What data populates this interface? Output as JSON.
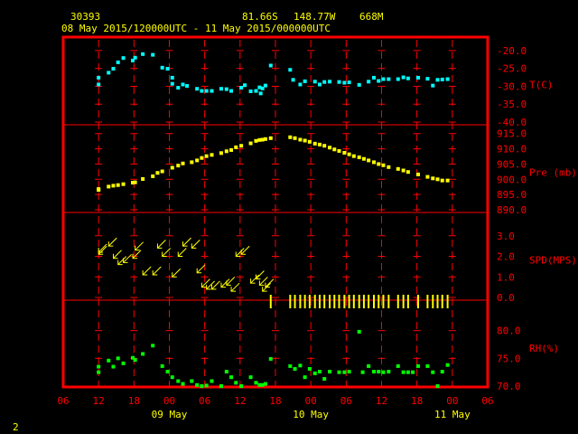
{
  "header": {
    "station_id": "30393",
    "latitude": "81.66S",
    "longitude": "148.77W",
    "elevation": "668M",
    "period": "08 May 2015/120000UTC - 11 May 2015/000000UTC"
  },
  "footer": {
    "page_number": "2"
  },
  "colors": {
    "background": "#000000",
    "frame": "#ff0000",
    "axis_text": "#ff0000",
    "header_text": "#ffff00",
    "day_text": "#ffff00",
    "temperature": "#00ffff",
    "pressure": "#ffff00",
    "wind": "#ffff00",
    "humidity": "#00ff00"
  },
  "chart_data": {
    "type": "scatter",
    "x_unit": "hours since 2015-05-08 12:00 UTC",
    "x_range": [
      -6,
      66
    ],
    "x_tick_labels": [
      "06",
      "12",
      "18",
      "00",
      "06",
      "12",
      "18",
      "00",
      "06",
      "12",
      "18",
      "00",
      "06"
    ],
    "x_tick_hours": [
      -6,
      0,
      6,
      12,
      18,
      24,
      30,
      36,
      42,
      48,
      54,
      60,
      66
    ],
    "day_labels": [
      {
        "label": "09 May",
        "hour": 12
      },
      {
        "label": "10 May",
        "hour": 36
      },
      {
        "label": "11 May",
        "hour": 60
      }
    ],
    "panels": [
      {
        "name": "temperature",
        "label": "T(C)",
        "ylim": [
          -40,
          -17
        ],
        "tick_values": [
          -20,
          -25,
          -30,
          -35,
          -40
        ],
        "tick_labels": [
          "-20.0",
          "-25.0",
          "-30.0",
          "-35.0",
          "-40.0"
        ],
        "marker": "square",
        "points": [
          [
            0,
            -29.5
          ],
          [
            0,
            -27.6
          ],
          [
            1.7,
            -26.2
          ],
          [
            2.5,
            -25.1
          ],
          [
            3.3,
            -23.3
          ],
          [
            4.2,
            -22.1
          ],
          [
            5.8,
            -22.8
          ],
          [
            6.2,
            -22.0
          ],
          [
            7.5,
            -21.0
          ],
          [
            9.2,
            -21.2
          ],
          [
            10.8,
            -24.8
          ],
          [
            11.7,
            -25.1
          ],
          [
            12.5,
            -27.6
          ],
          [
            12.5,
            -29.3
          ],
          [
            13.5,
            -30.4
          ],
          [
            14.3,
            -29.5
          ],
          [
            15.0,
            -29.9
          ],
          [
            16.7,
            -30.7
          ],
          [
            17.5,
            -31.3
          ],
          [
            18.3,
            -31.3
          ],
          [
            19.2,
            -31.3
          ],
          [
            20.8,
            -30.7
          ],
          [
            21.7,
            -30.8
          ],
          [
            22.5,
            -31.3
          ],
          [
            24.2,
            -30.4
          ],
          [
            24.8,
            -29.7
          ],
          [
            25.8,
            -31.4
          ],
          [
            26.7,
            -31.3
          ],
          [
            27.3,
            -30.3
          ],
          [
            27.8,
            -30.6
          ],
          [
            27.5,
            -32.0
          ],
          [
            28.3,
            -29.8
          ],
          [
            29.2,
            -24.2
          ],
          [
            32.5,
            -25.4
          ],
          [
            33.0,
            -28.2
          ],
          [
            34.2,
            -29.5
          ],
          [
            35.0,
            -28.6
          ],
          [
            36.7,
            -28.7
          ],
          [
            37.5,
            -29.5
          ],
          [
            38.3,
            -28.8
          ],
          [
            39.2,
            -28.7
          ],
          [
            40.8,
            -28.8
          ],
          [
            41.7,
            -29.0
          ],
          [
            42.5,
            -28.9
          ],
          [
            44.2,
            -29.6
          ],
          [
            45.8,
            -28.7
          ],
          [
            46.7,
            -27.6
          ],
          [
            47.5,
            -28.5
          ],
          [
            48.3,
            -28.0
          ],
          [
            49.2,
            -28.0
          ],
          [
            50.8,
            -28.0
          ],
          [
            51.7,
            -27.5
          ],
          [
            52.5,
            -27.8
          ],
          [
            54.2,
            -27.6
          ],
          [
            55.8,
            -27.9
          ],
          [
            56.7,
            -29.8
          ],
          [
            57.5,
            -28.2
          ],
          [
            58.3,
            -28.1
          ],
          [
            59.2,
            -28.0
          ]
        ]
      },
      {
        "name": "pressure",
        "label": "Pre (mb)",
        "ylim": [
          890,
          917
        ],
        "tick_values": [
          915,
          910,
          905,
          900,
          895,
          890
        ],
        "tick_labels": [
          "915.0",
          "910.0",
          "905.0",
          "900.0",
          "895.0",
          "890.0"
        ],
        "marker": "square",
        "points": [
          [
            0,
            896.8
          ],
          [
            0,
            896.5
          ],
          [
            1.7,
            897.6
          ],
          [
            2.5,
            897.9
          ],
          [
            3.3,
            898.1
          ],
          [
            4.2,
            898.4
          ],
          [
            5.8,
            898.9
          ],
          [
            6.2,
            899.0
          ],
          [
            7.5,
            900.1
          ],
          [
            9.2,
            901.0
          ],
          [
            10.0,
            902.1
          ],
          [
            10.8,
            902.6
          ],
          [
            12.5,
            903.8
          ],
          [
            13.5,
            904.5
          ],
          [
            14.3,
            905.2
          ],
          [
            15.8,
            905.6
          ],
          [
            16.7,
            906.2
          ],
          [
            17.5,
            907.0
          ],
          [
            18.3,
            907.6
          ],
          [
            19.2,
            908.0
          ],
          [
            20.8,
            908.6
          ],
          [
            21.7,
            909.2
          ],
          [
            22.5,
            909.6
          ],
          [
            23.3,
            910.5
          ],
          [
            24.2,
            911.0
          ],
          [
            25.8,
            911.8
          ],
          [
            26.7,
            912.6
          ],
          [
            27.3,
            912.9
          ],
          [
            27.8,
            913.0
          ],
          [
            28.3,
            913.2
          ],
          [
            29.2,
            913.5
          ],
          [
            32.5,
            913.8
          ],
          [
            33.3,
            913.5
          ],
          [
            34.2,
            913.0
          ],
          [
            35.0,
            912.7
          ],
          [
            35.8,
            912.3
          ],
          [
            36.7,
            911.7
          ],
          [
            37.5,
            911.4
          ],
          [
            38.3,
            911.0
          ],
          [
            39.2,
            910.4
          ],
          [
            40.0,
            909.8
          ],
          [
            40.8,
            909.3
          ],
          [
            41.7,
            908.7
          ],
          [
            42.5,
            908.2
          ],
          [
            43.3,
            907.6
          ],
          [
            44.2,
            907.2
          ],
          [
            45.0,
            906.7
          ],
          [
            45.8,
            906.2
          ],
          [
            46.7,
            905.6
          ],
          [
            47.5,
            905.0
          ],
          [
            48.3,
            904.6
          ],
          [
            49.2,
            904.0
          ],
          [
            50.8,
            903.4
          ],
          [
            51.7,
            902.9
          ],
          [
            52.5,
            902.4
          ],
          [
            54.2,
            901.6
          ],
          [
            55.8,
            900.8
          ],
          [
            56.7,
            900.3
          ],
          [
            57.5,
            900.0
          ],
          [
            58.3,
            899.6
          ],
          [
            59.2,
            899.6
          ]
        ]
      },
      {
        "name": "wind_speed",
        "label": "SPD(MPS)",
        "ylim": [
          0,
          4
        ],
        "tick_values": [
          3,
          2,
          1,
          0
        ],
        "tick_labels": [
          "3.0",
          "2.0",
          "1.0",
          "0.0"
        ],
        "marker": "arrow",
        "points": [
          [
            0,
            2.2
          ],
          [
            0,
            2.1
          ],
          [
            1.7,
            2.5
          ],
          [
            2.5,
            1.9
          ],
          [
            3.3,
            1.6
          ],
          [
            4.2,
            1.7
          ],
          [
            5.8,
            1.9
          ],
          [
            6.2,
            2.3
          ],
          [
            7.5,
            1.1
          ],
          [
            9.2,
            1.1
          ],
          [
            10.0,
            2.4
          ],
          [
            10.8,
            2.0
          ],
          [
            12.5,
            1.0
          ],
          [
            13.5,
            2.0
          ],
          [
            14.3,
            2.5
          ],
          [
            15.8,
            2.4
          ],
          [
            16.7,
            1.2
          ],
          [
            17.5,
            0.5
          ],
          [
            18.3,
            0.4
          ],
          [
            19.2,
            0.4
          ],
          [
            20.8,
            0.5
          ],
          [
            21.7,
            0.6
          ],
          [
            22.5,
            0.3
          ],
          [
            23.3,
            2.0
          ],
          [
            24.2,
            2.1
          ],
          [
            25.8,
            0.7
          ],
          [
            26.7,
            0.9
          ],
          [
            27.3,
            0.6
          ],
          [
            27.8,
            0.3
          ],
          [
            28.3,
            0.5
          ],
          [
            29.2,
            0.0
          ],
          [
            32.5,
            0.0
          ],
          [
            33.3,
            0.0
          ],
          [
            34.2,
            0.0
          ],
          [
            35.0,
            0.0
          ],
          [
            35.8,
            0.0
          ],
          [
            36.7,
            0.0
          ],
          [
            37.5,
            0.0
          ],
          [
            38.3,
            0.0
          ],
          [
            39.2,
            0.0
          ],
          [
            40.0,
            0.0
          ],
          [
            40.8,
            0.0
          ],
          [
            41.7,
            0.0
          ],
          [
            42.5,
            0.0
          ],
          [
            43.3,
            0.0
          ],
          [
            44.2,
            0.0
          ],
          [
            45.0,
            0.0
          ],
          [
            45.8,
            0.0
          ],
          [
            46.7,
            0.0
          ],
          [
            47.5,
            0.0
          ],
          [
            48.3,
            0.0
          ],
          [
            49.2,
            0.0
          ],
          [
            50.8,
            0.0
          ],
          [
            51.7,
            0.0
          ],
          [
            52.5,
            0.0
          ],
          [
            54.2,
            0.0
          ],
          [
            55.8,
            0.0
          ],
          [
            56.7,
            0.0
          ],
          [
            57.5,
            0.0
          ],
          [
            58.3,
            0.0
          ],
          [
            59.2,
            0.0
          ]
        ]
      },
      {
        "name": "humidity",
        "label": "RH(%)",
        "ylim": [
          70,
          85
        ],
        "tick_values": [
          80,
          75,
          70
        ],
        "tick_labels": [
          "80.0",
          "75.0",
          "70.0"
        ],
        "marker": "square",
        "points": [
          [
            0,
            73.5
          ],
          [
            0,
            72.5
          ],
          [
            1.7,
            74.6
          ],
          [
            2.5,
            73.5
          ],
          [
            3.3,
            75.0
          ],
          [
            4.2,
            74.1
          ],
          [
            5.8,
            75.1
          ],
          [
            6.2,
            74.7
          ],
          [
            7.5,
            75.8
          ],
          [
            9.2,
            77.3
          ],
          [
            10.8,
            73.6
          ],
          [
            11.7,
            72.6
          ],
          [
            12.5,
            71.6
          ],
          [
            13.5,
            70.9
          ],
          [
            14.3,
            70.4
          ],
          [
            15.8,
            70.9
          ],
          [
            16.7,
            70.2
          ],
          [
            17.5,
            70.0
          ],
          [
            18.3,
            70.1
          ],
          [
            19.2,
            70.9
          ],
          [
            20.8,
            70.0
          ],
          [
            21.7,
            72.6
          ],
          [
            22.5,
            71.6
          ],
          [
            23.3,
            70.6
          ],
          [
            24.2,
            70.0
          ],
          [
            25.8,
            71.6
          ],
          [
            26.7,
            70.6
          ],
          [
            27.3,
            70.2
          ],
          [
            27.8,
            70.2
          ],
          [
            28.3,
            70.4
          ],
          [
            29.2,
            74.9
          ],
          [
            32.5,
            73.6
          ],
          [
            33.3,
            73.1
          ],
          [
            34.2,
            73.7
          ],
          [
            35.0,
            71.6
          ],
          [
            35.8,
            73.1
          ],
          [
            36.7,
            72.3
          ],
          [
            37.5,
            72.6
          ],
          [
            38.3,
            71.3
          ],
          [
            39.2,
            72.6
          ],
          [
            40.8,
            72.5
          ],
          [
            41.7,
            72.5
          ],
          [
            42.5,
            72.6
          ],
          [
            44.2,
            79.8
          ],
          [
            44.8,
            72.5
          ],
          [
            45.8,
            73.6
          ],
          [
            46.7,
            72.6
          ],
          [
            47.5,
            72.6
          ],
          [
            48.3,
            72.5
          ],
          [
            49.2,
            72.6
          ],
          [
            50.8,
            73.6
          ],
          [
            51.7,
            72.5
          ],
          [
            52.5,
            72.5
          ],
          [
            53.3,
            72.5
          ],
          [
            54.2,
            73.6
          ],
          [
            55.8,
            73.6
          ],
          [
            56.7,
            72.5
          ],
          [
            57.5,
            70.0
          ],
          [
            58.3,
            72.6
          ],
          [
            59.2,
            73.8
          ]
        ]
      }
    ]
  }
}
